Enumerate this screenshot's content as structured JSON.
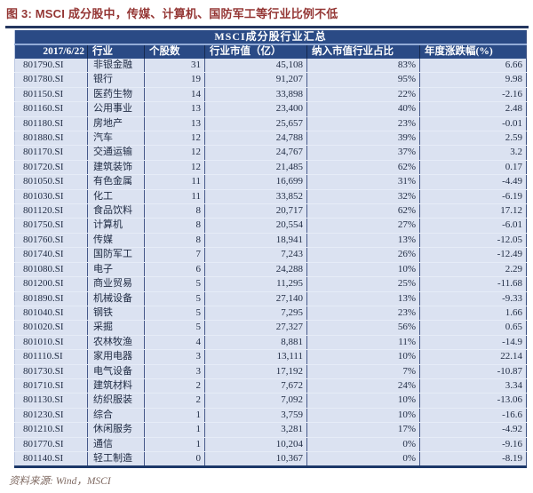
{
  "figure": {
    "caption": "图 3: MSCI 成分股中，传媒、计算机、国防军工等行业比例不低",
    "source": "资料来源: Wind，MSCI"
  },
  "table": {
    "title": "MSCI成分股行业汇总",
    "columns": [
      "2017/6/22",
      "行业",
      "个股数",
      "行业市值（亿）",
      "纳入市值行业占比",
      "年度涨跌幅(%)"
    ],
    "rows": [
      [
        "801790.SI",
        "非银金融",
        "31",
        "45,108",
        "83%",
        "6.66"
      ],
      [
        "801780.SI",
        "银行",
        "19",
        "91,207",
        "95%",
        "9.98"
      ],
      [
        "801150.SI",
        "医药生物",
        "14",
        "33,898",
        "22%",
        "-2.16"
      ],
      [
        "801160.SI",
        "公用事业",
        "13",
        "23,400",
        "40%",
        "2.48"
      ],
      [
        "801180.SI",
        "房地产",
        "13",
        "25,657",
        "23%",
        "-0.01"
      ],
      [
        "801880.SI",
        "汽车",
        "12",
        "24,788",
        "39%",
        "2.59"
      ],
      [
        "801170.SI",
        "交通运输",
        "12",
        "24,767",
        "37%",
        "3.2"
      ],
      [
        "801720.SI",
        "建筑装饰",
        "12",
        "21,485",
        "62%",
        "0.17"
      ],
      [
        "801050.SI",
        "有色金属",
        "11",
        "16,699",
        "31%",
        "-4.49"
      ],
      [
        "801030.SI",
        "化工",
        "11",
        "33,852",
        "32%",
        "-6.19"
      ],
      [
        "801120.SI",
        "食品饮料",
        "8",
        "20,717",
        "62%",
        "17.12"
      ],
      [
        "801750.SI",
        "计算机",
        "8",
        "20,554",
        "27%",
        "-6.01"
      ],
      [
        "801760.SI",
        "传媒",
        "8",
        "18,941",
        "13%",
        "-12.05"
      ],
      [
        "801740.SI",
        "国防军工",
        "7",
        "7,243",
        "26%",
        "-12.49"
      ],
      [
        "801080.SI",
        "电子",
        "6",
        "24,288",
        "10%",
        "2.29"
      ],
      [
        "801200.SI",
        "商业贸易",
        "5",
        "11,295",
        "25%",
        "-11.68"
      ],
      [
        "801890.SI",
        "机械设备",
        "5",
        "27,140",
        "13%",
        "-9.33"
      ],
      [
        "801040.SI",
        "钢铁",
        "5",
        "7,295",
        "23%",
        "1.66"
      ],
      [
        "801020.SI",
        "采掘",
        "5",
        "27,327",
        "56%",
        "0.65"
      ],
      [
        "801010.SI",
        "农林牧渔",
        "4",
        "8,881",
        "11%",
        "-14.9"
      ],
      [
        "801110.SI",
        "家用电器",
        "3",
        "13,111",
        "10%",
        "22.14"
      ],
      [
        "801730.SI",
        "电气设备",
        "3",
        "17,192",
        "7%",
        "-10.87"
      ],
      [
        "801710.SI",
        "建筑材料",
        "2",
        "7,672",
        "24%",
        "3.34"
      ],
      [
        "801130.SI",
        "纺织服装",
        "2",
        "7,092",
        "10%",
        "-13.06"
      ],
      [
        "801230.SI",
        "综合",
        "1",
        "3,759",
        "10%",
        "-16.6"
      ],
      [
        "801210.SI",
        "休闲服务",
        "1",
        "3,281",
        "17%",
        "-4.92"
      ],
      [
        "801770.SI",
        "通信",
        "1",
        "10,204",
        "0%",
        "-9.16"
      ],
      [
        "801140.SI",
        "轻工制造",
        "0",
        "10,367",
        "0%",
        "-8.19"
      ]
    ],
    "cell_names": [
      "cell-code",
      "cell-industry",
      "cell-stock-count",
      "cell-market-cap",
      "cell-weight",
      "cell-annual-change"
    ]
  },
  "colors": {
    "caption_text": "#943634",
    "header_background": "#2a4a85",
    "header_text": "#ffffff",
    "row_background": "#dbe2f1",
    "body_text": "#1e2a42",
    "rule_navy": "#24365f",
    "source_text": "#806b63"
  }
}
